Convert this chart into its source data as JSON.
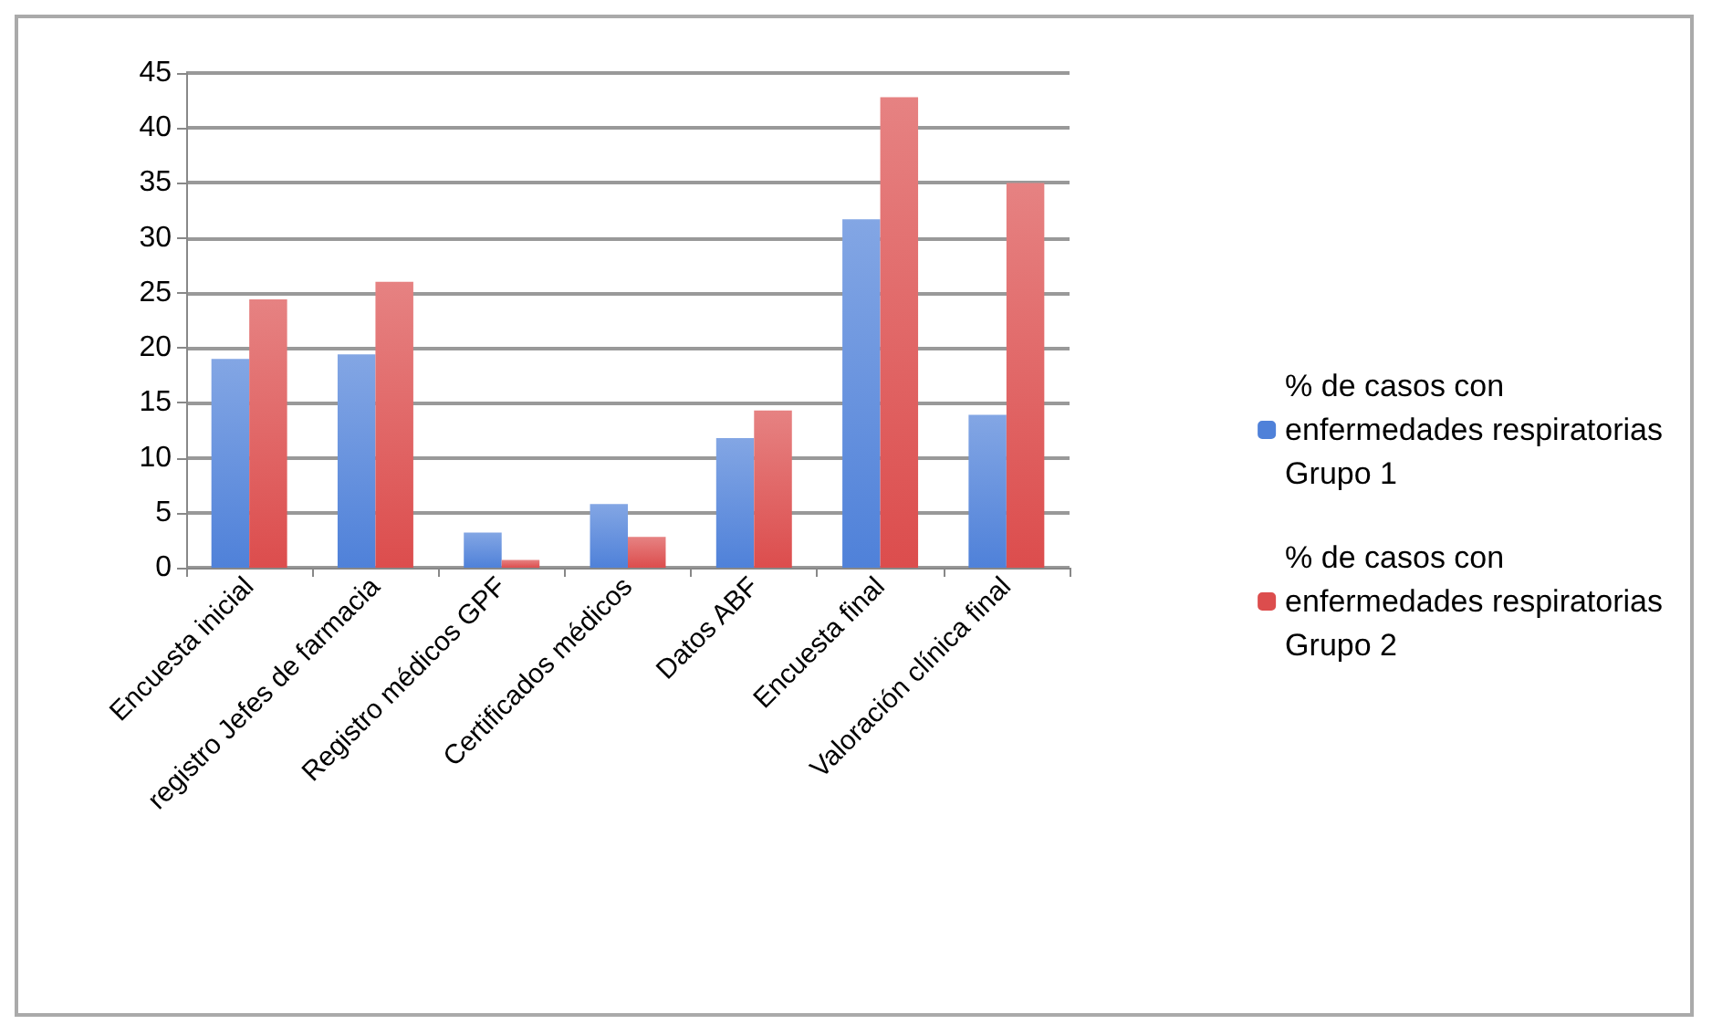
{
  "chart_data": {
    "type": "bar",
    "categories": [
      "Encuesta inicial",
      "registro Jefes de farmacia",
      "Registro médicos GPF",
      "Certificados médicos",
      "Datos ABF",
      "Encuesta final",
      "Valoración clínica final"
    ],
    "series": [
      {
        "name": "% de casos con enfermedades respiratorias Grupo 1",
        "color": "#4f81d9",
        "values": [
          19.0,
          19.4,
          3.2,
          5.8,
          11.8,
          31.7,
          13.9
        ]
      },
      {
        "name": "% de casos con enfermedades respiratorias Grupo 2",
        "color": "#dc4d4d",
        "values": [
          24.4,
          26.0,
          0.7,
          2.8,
          14.3,
          42.8,
          35.0
        ]
      }
    ],
    "ylim": [
      0,
      45
    ],
    "yticks": [
      0,
      5,
      10,
      15,
      20,
      25,
      30,
      35,
      40,
      45
    ],
    "grid": "y",
    "legend": "right"
  }
}
